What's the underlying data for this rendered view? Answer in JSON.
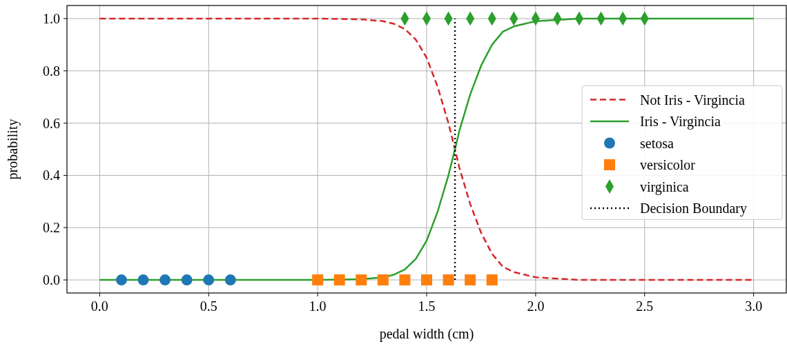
{
  "chart_data": {
    "type": "line",
    "xlabel": "pedal width (cm)",
    "ylabel": "probability",
    "xlim": [
      -0.15,
      3.15
    ],
    "ylim": [
      -0.05,
      1.05
    ],
    "xticks": [
      {
        "value": 0,
        "label": "0.0"
      },
      {
        "value": 0.5,
        "label": "0.5"
      },
      {
        "value": 1,
        "label": "1.0"
      },
      {
        "value": 1.5,
        "label": "1.5"
      },
      {
        "value": 2,
        "label": "2.0"
      },
      {
        "value": 2.5,
        "label": "2.5"
      },
      {
        "value": 3,
        "label": "3.0"
      }
    ],
    "yticks": [
      {
        "value": 0,
        "label": "0.0"
      },
      {
        "value": 0.2,
        "label": "0.2"
      },
      {
        "value": 0.4,
        "label": "0.4"
      },
      {
        "value": 0.6,
        "label": "0.6"
      },
      {
        "value": 0.8,
        "label": "0.8"
      },
      {
        "value": 1,
        "label": "1.0"
      }
    ],
    "grid": true,
    "legend": "right",
    "series": [
      {
        "name": "Not Iris - Virgincia",
        "color": "#d62728",
        "line_style": "dashed",
        "x": [
          0,
          1,
          1.2,
          1.3,
          1.35,
          1.4,
          1.45,
          1.5,
          1.55,
          1.6,
          1.63,
          1.65,
          1.7,
          1.75,
          1.8,
          1.85,
          1.9,
          2,
          2.2,
          3
        ],
        "values": [
          1,
          1,
          0.997,
          0.99,
          0.98,
          0.96,
          0.92,
          0.85,
          0.74,
          0.6,
          0.5,
          0.43,
          0.29,
          0.18,
          0.1,
          0.05,
          0.03,
          0.01,
          0,
          0
        ]
      },
      {
        "name": "Iris - Virgincia",
        "color": "#2ca02c",
        "line_style": "solid",
        "x": [
          0,
          1,
          1.2,
          1.3,
          1.35,
          1.4,
          1.45,
          1.5,
          1.55,
          1.6,
          1.63,
          1.65,
          1.7,
          1.75,
          1.8,
          1.85,
          1.9,
          2,
          2.2,
          3
        ],
        "values": [
          0,
          0,
          0.003,
          0.01,
          0.02,
          0.04,
          0.08,
          0.15,
          0.26,
          0.4,
          0.5,
          0.57,
          0.71,
          0.82,
          0.9,
          0.95,
          0.97,
          0.99,
          1,
          1
        ]
      },
      {
        "name": "setosa",
        "type": "scatter",
        "color": "#1f77b4",
        "marker": "circle",
        "x": [
          0.1,
          0.2,
          0.3,
          0.4,
          0.5,
          0.6
        ],
        "values": [
          0,
          0,
          0,
          0,
          0,
          0
        ]
      },
      {
        "name": "versicolor",
        "type": "scatter",
        "color": "#ff7f0e",
        "marker": "square",
        "x": [
          1,
          1.1,
          1.2,
          1.3,
          1.4,
          1.5,
          1.6,
          1.7,
          1.8
        ],
        "values": [
          0,
          0,
          0,
          0,
          0,
          0,
          0,
          0,
          0
        ]
      },
      {
        "name": "virginica",
        "type": "scatter",
        "color": "#2ca02c",
        "marker": "diamond",
        "x": [
          1.4,
          1.5,
          1.6,
          1.7,
          1.8,
          1.9,
          2,
          2.1,
          2.2,
          2.3,
          2.4,
          2.5
        ],
        "values": [
          1,
          1,
          1,
          1,
          1,
          1,
          1,
          1,
          1,
          1,
          1,
          1
        ]
      },
      {
        "name": "Decision Boundary",
        "color": "#000000",
        "line_style": "dotted",
        "x": [
          1.63,
          1.63
        ],
        "values": [
          0,
          1
        ]
      }
    ]
  }
}
